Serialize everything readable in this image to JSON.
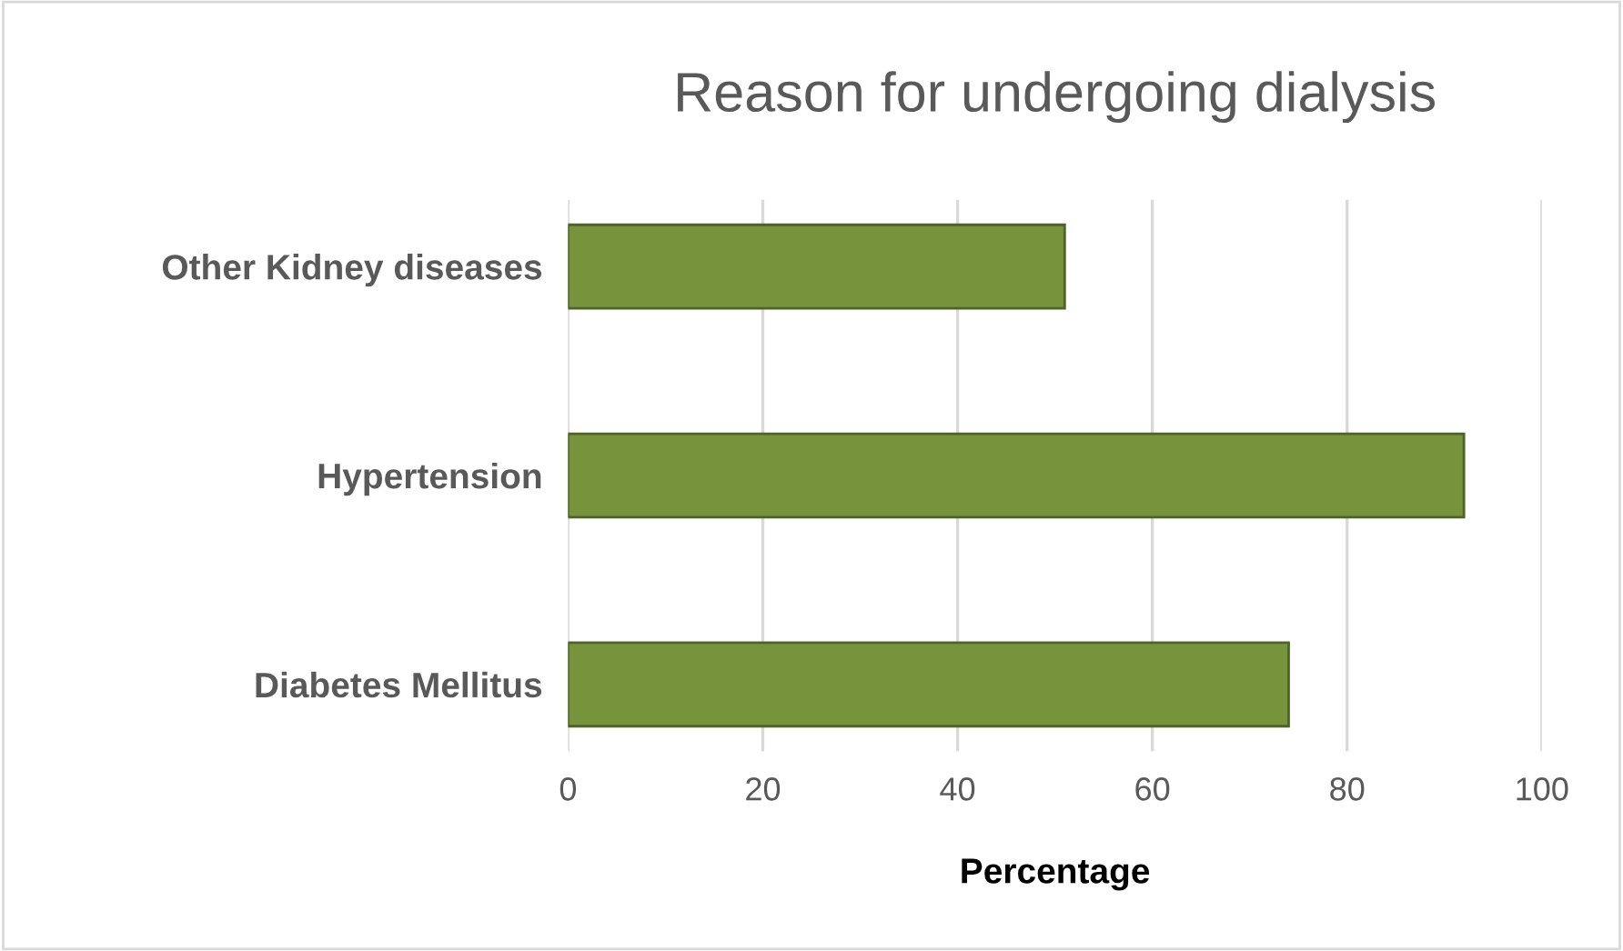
{
  "chart_data": {
    "type": "bar",
    "orientation": "horizontal",
    "title": "Reason for undergoing dialysis",
    "xlabel": "Percentage",
    "categories": [
      "Other Kidney diseases",
      "Hypertension",
      "Diabetes Mellitus"
    ],
    "values": [
      51,
      92,
      74
    ],
    "color": "#77933c",
    "xlim": [
      0,
      100
    ],
    "xticks": [
      0,
      20,
      40,
      60,
      80,
      100
    ],
    "grid": "x",
    "legend": false
  }
}
